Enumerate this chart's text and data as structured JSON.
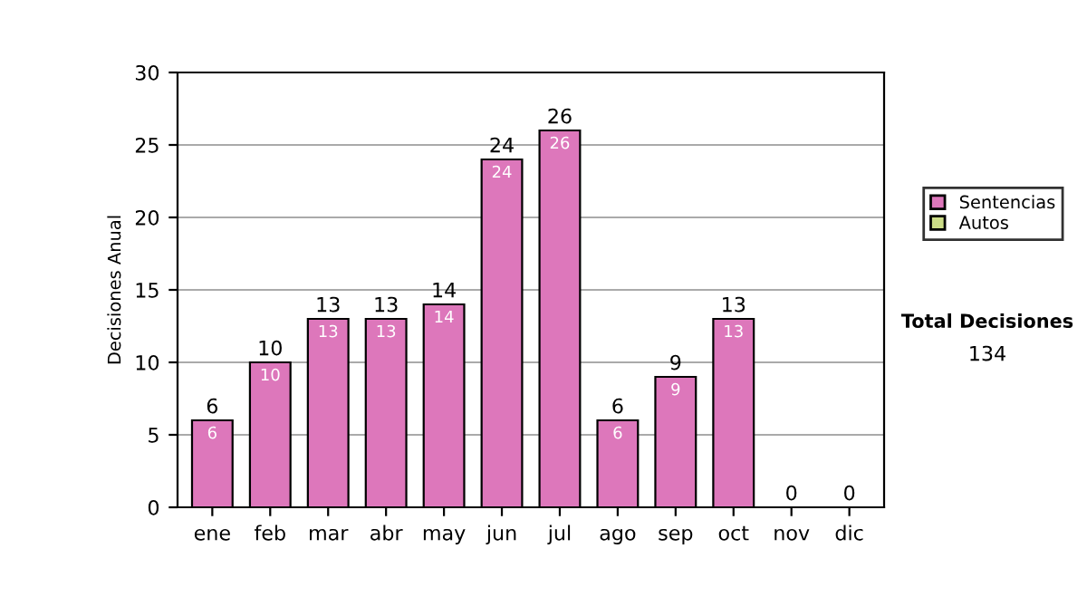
{
  "chart_data": {
    "type": "bar",
    "stacked": true,
    "ylabel": "Decisiones Anual",
    "categories": [
      "ene",
      "feb",
      "mar",
      "abr",
      "may",
      "jun",
      "jul",
      "ago",
      "sep",
      "oct",
      "nov",
      "dic"
    ],
    "series": [
      {
        "name": "Sentencias",
        "color": "#dd77bb",
        "values": [
          6,
          10,
          13,
          13,
          14,
          24,
          26,
          6,
          9,
          13,
          0,
          0
        ],
        "value_labels": [
          "6",
          "10",
          "13",
          "13",
          "14",
          "24",
          "26",
          "6",
          "9",
          "13",
          null,
          null
        ]
      },
      {
        "name": "Autos",
        "color": "#ccdd88",
        "values": [
          0,
          0,
          0,
          0,
          0,
          0,
          0,
          0,
          0,
          0,
          0,
          0
        ]
      }
    ],
    "totals": [
      "6",
      "10",
      "13",
      "13",
      "14",
      "24",
      "26",
      "6",
      "9",
      "13",
      "0",
      "0"
    ],
    "ylim": [
      0,
      30
    ],
    "yticks": [
      0,
      5,
      10,
      15,
      20,
      25,
      30
    ],
    "grid": "y",
    "legend": "right",
    "annotations": [
      "Total Decisiones",
      "134"
    ]
  }
}
